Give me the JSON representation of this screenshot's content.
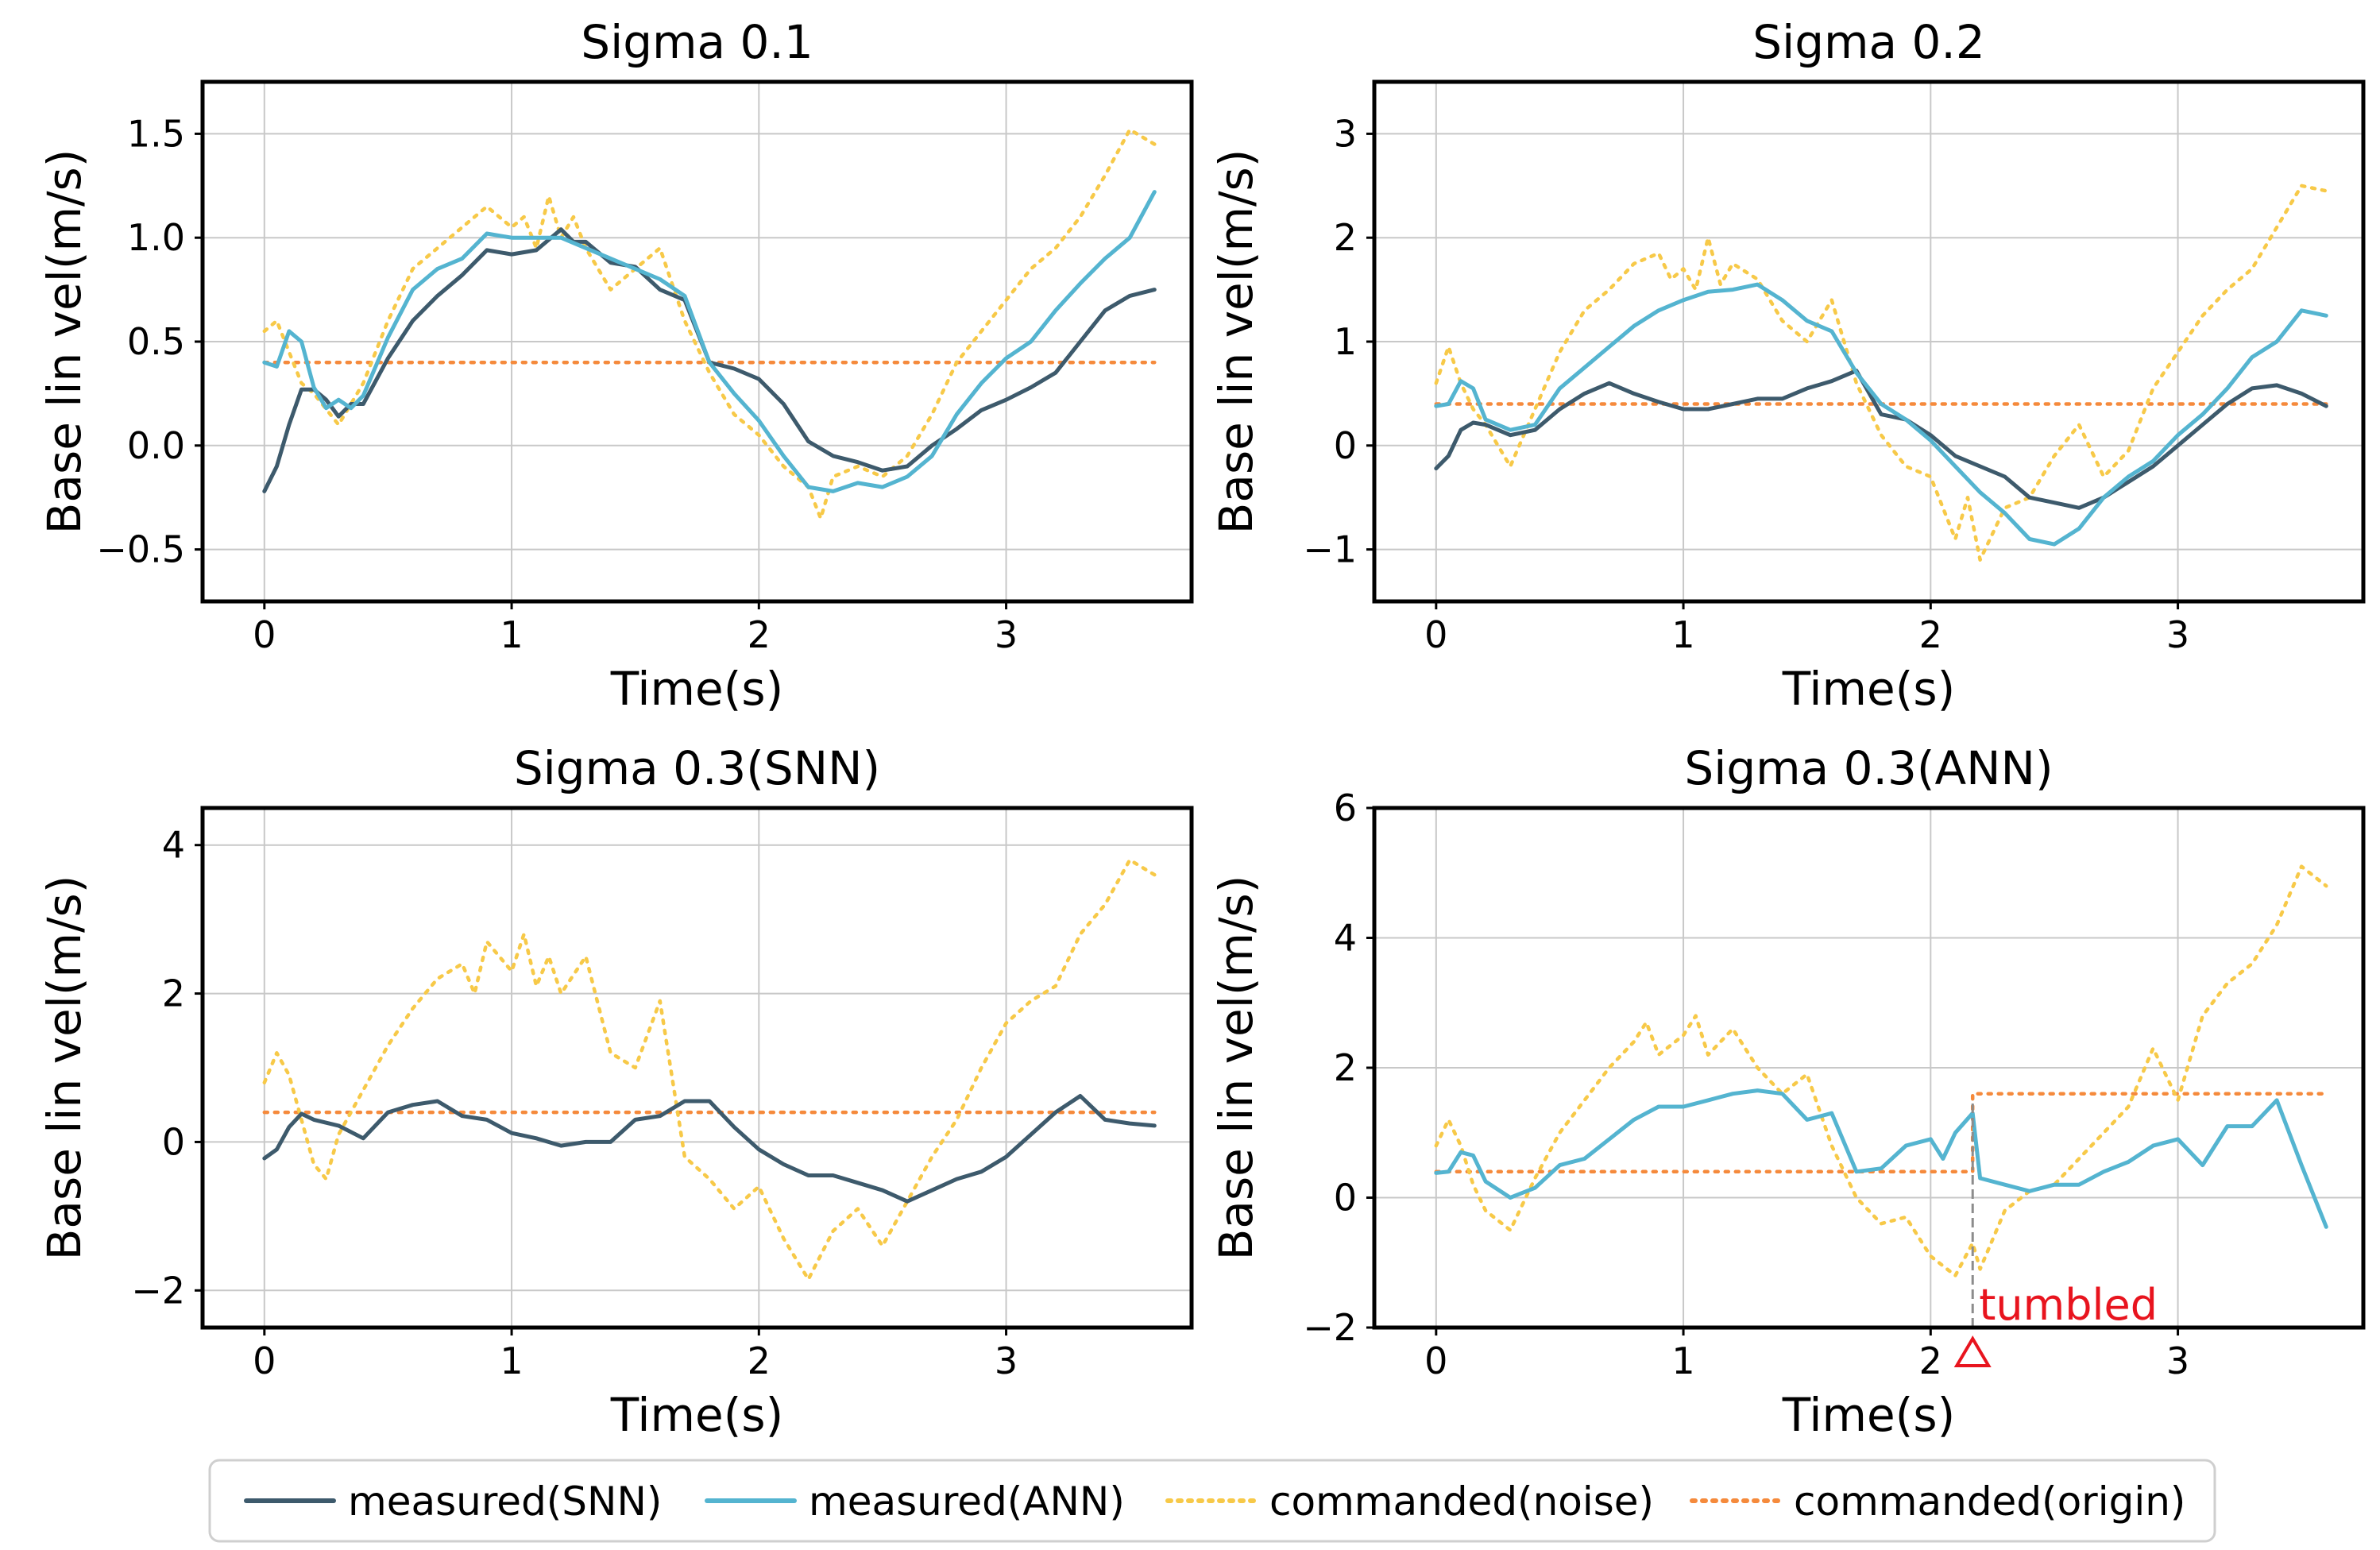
{
  "colors": {
    "measured_snn": "#3d5a6c",
    "measured_ann": "#54b4d0",
    "commanded_noise": "#f7c948",
    "commanded_origin": "#f58a3c",
    "tumbled": "#e8141e",
    "grid": "#c8c8c8"
  },
  "legend": {
    "placement": "bottom-center",
    "items": [
      {
        "key": "measured_snn",
        "label": "measured(SNN)",
        "style": "solid"
      },
      {
        "key": "measured_ann",
        "label": "measured(ANN)",
        "style": "solid"
      },
      {
        "key": "commanded_noise",
        "label": "commanded(noise)",
        "style": "dotted"
      },
      {
        "key": "commanded_origin",
        "label": "commanded(origin)",
        "style": "dotted"
      }
    ]
  },
  "chart_data": [
    {
      "type": "line",
      "title": "Sigma 0.1",
      "xlabel": "Time(s)",
      "ylabel": "Base lin vel(m/s)",
      "xlim": [
        -0.25,
        3.75
      ],
      "ylim": [
        -0.75,
        1.75
      ],
      "xticks": [
        0,
        1,
        2,
        3
      ],
      "yticks": [
        -0.5,
        0.0,
        0.5,
        1.0,
        1.5
      ],
      "ytick_labels": [
        "−0.5",
        "0.0",
        "0.5",
        "1.0",
        "1.5"
      ],
      "grid": true,
      "series": [
        {
          "key": "measured_snn",
          "x": [
            0,
            0.05,
            0.1,
            0.15,
            0.2,
            0.25,
            0.3,
            0.35,
            0.4,
            0.5,
            0.6,
            0.7,
            0.8,
            0.9,
            1.0,
            1.1,
            1.2,
            1.25,
            1.3,
            1.4,
            1.5,
            1.6,
            1.7,
            1.8,
            1.9,
            2.0,
            2.1,
            2.2,
            2.3,
            2.4,
            2.5,
            2.6,
            2.7,
            2.8,
            2.9,
            3.0,
            3.1,
            3.2,
            3.3,
            3.4,
            3.5,
            3.6
          ],
          "y": [
            -0.22,
            -0.1,
            0.1,
            0.27,
            0.27,
            0.22,
            0.14,
            0.2,
            0.2,
            0.42,
            0.6,
            0.72,
            0.82,
            0.94,
            0.92,
            0.94,
            1.04,
            0.98,
            0.98,
            0.88,
            0.86,
            0.75,
            0.7,
            0.4,
            0.37,
            0.32,
            0.2,
            0.02,
            -0.05,
            -0.08,
            -0.12,
            -0.1,
            0.0,
            0.08,
            0.17,
            0.22,
            0.28,
            0.35,
            0.5,
            0.65,
            0.72,
            0.75
          ]
        },
        {
          "key": "measured_ann",
          "x": [
            0,
            0.05,
            0.1,
            0.15,
            0.2,
            0.25,
            0.3,
            0.35,
            0.4,
            0.5,
            0.6,
            0.7,
            0.8,
            0.9,
            1.0,
            1.1,
            1.2,
            1.3,
            1.4,
            1.5,
            1.6,
            1.7,
            1.8,
            1.9,
            2.0,
            2.1,
            2.2,
            2.3,
            2.4,
            2.5,
            2.6,
            2.7,
            2.8,
            2.9,
            3.0,
            3.1,
            3.2,
            3.3,
            3.4,
            3.5,
            3.6
          ],
          "y": [
            0.4,
            0.38,
            0.55,
            0.5,
            0.28,
            0.18,
            0.22,
            0.18,
            0.24,
            0.52,
            0.75,
            0.85,
            0.9,
            1.02,
            1.0,
            1.0,
            1.0,
            0.95,
            0.9,
            0.85,
            0.8,
            0.72,
            0.4,
            0.25,
            0.12,
            -0.05,
            -0.2,
            -0.22,
            -0.18,
            -0.2,
            -0.15,
            -0.05,
            0.15,
            0.3,
            0.42,
            0.5,
            0.65,
            0.78,
            0.9,
            1.0,
            1.22
          ]
        },
        {
          "key": "commanded_noise",
          "x": [
            0,
            0.05,
            0.1,
            0.15,
            0.2,
            0.3,
            0.4,
            0.5,
            0.6,
            0.7,
            0.8,
            0.9,
            1.0,
            1.05,
            1.1,
            1.15,
            1.2,
            1.25,
            1.3,
            1.4,
            1.5,
            1.6,
            1.7,
            1.8,
            1.9,
            2.0,
            2.1,
            2.2,
            2.25,
            2.3,
            2.4,
            2.5,
            2.6,
            2.7,
            2.8,
            2.9,
            3.0,
            3.1,
            3.2,
            3.3,
            3.4,
            3.5,
            3.6
          ],
          "y": [
            0.55,
            0.6,
            0.45,
            0.3,
            0.25,
            0.1,
            0.3,
            0.6,
            0.85,
            0.95,
            1.05,
            1.15,
            1.05,
            1.1,
            0.95,
            1.2,
            1.0,
            1.1,
            0.95,
            0.75,
            0.85,
            0.95,
            0.6,
            0.35,
            0.15,
            0.05,
            -0.1,
            -0.2,
            -0.35,
            -0.15,
            -0.1,
            -0.15,
            -0.05,
            0.15,
            0.4,
            0.55,
            0.7,
            0.85,
            0.95,
            1.1,
            1.3,
            1.52,
            1.45
          ]
        },
        {
          "key": "commanded_origin",
          "x": [
            0,
            3.6
          ],
          "y": [
            0.4,
            0.4
          ]
        }
      ]
    },
    {
      "type": "line",
      "title": "Sigma 0.2",
      "xlabel": "Time(s)",
      "ylabel": "Base lin vel(m/s)",
      "xlim": [
        -0.25,
        3.75
      ],
      "ylim": [
        -1.5,
        3.5
      ],
      "xticks": [
        0,
        1,
        2,
        3
      ],
      "yticks": [
        -1,
        0,
        1,
        2,
        3
      ],
      "ytick_labels": [
        "−1",
        "0",
        "1",
        "2",
        "3"
      ],
      "grid": true,
      "series": [
        {
          "key": "measured_snn",
          "x": [
            0,
            0.05,
            0.1,
            0.15,
            0.2,
            0.3,
            0.4,
            0.5,
            0.6,
            0.7,
            0.8,
            0.9,
            1.0,
            1.1,
            1.2,
            1.3,
            1.4,
            1.5,
            1.6,
            1.7,
            1.8,
            1.9,
            2.0,
            2.1,
            2.2,
            2.3,
            2.4,
            2.5,
            2.6,
            2.7,
            2.8,
            2.9,
            3.0,
            3.1,
            3.2,
            3.3,
            3.4,
            3.5,
            3.6
          ],
          "y": [
            -0.22,
            -0.1,
            0.15,
            0.22,
            0.2,
            0.1,
            0.15,
            0.35,
            0.5,
            0.6,
            0.5,
            0.42,
            0.35,
            0.35,
            0.4,
            0.45,
            0.45,
            0.55,
            0.62,
            0.72,
            0.3,
            0.25,
            0.1,
            -0.1,
            -0.2,
            -0.3,
            -0.5,
            -0.55,
            -0.6,
            -0.5,
            -0.35,
            -0.2,
            0.0,
            0.2,
            0.4,
            0.55,
            0.58,
            0.5,
            0.38
          ]
        },
        {
          "key": "measured_ann",
          "x": [
            0,
            0.05,
            0.1,
            0.15,
            0.2,
            0.3,
            0.4,
            0.5,
            0.6,
            0.7,
            0.8,
            0.9,
            1.0,
            1.1,
            1.2,
            1.3,
            1.4,
            1.5,
            1.6,
            1.7,
            1.8,
            1.9,
            2.0,
            2.1,
            2.2,
            2.3,
            2.4,
            2.5,
            2.6,
            2.7,
            2.8,
            2.9,
            3.0,
            3.1,
            3.2,
            3.3,
            3.4,
            3.5,
            3.6
          ],
          "y": [
            0.38,
            0.4,
            0.62,
            0.55,
            0.25,
            0.15,
            0.2,
            0.55,
            0.75,
            0.95,
            1.15,
            1.3,
            1.4,
            1.48,
            1.5,
            1.55,
            1.4,
            1.2,
            1.1,
            0.7,
            0.4,
            0.25,
            0.05,
            -0.2,
            -0.45,
            -0.65,
            -0.9,
            -0.95,
            -0.8,
            -0.5,
            -0.3,
            -0.15,
            0.1,
            0.3,
            0.55,
            0.85,
            1.0,
            1.3,
            1.25
          ]
        },
        {
          "key": "commanded_noise",
          "x": [
            0,
            0.05,
            0.1,
            0.15,
            0.2,
            0.3,
            0.4,
            0.5,
            0.6,
            0.7,
            0.8,
            0.9,
            0.95,
            1.0,
            1.05,
            1.1,
            1.15,
            1.2,
            1.3,
            1.4,
            1.5,
            1.6,
            1.7,
            1.8,
            1.9,
            2.0,
            2.1,
            2.15,
            2.2,
            2.3,
            2.4,
            2.5,
            2.6,
            2.7,
            2.8,
            2.9,
            3.0,
            3.1,
            3.2,
            3.3,
            3.4,
            3.5,
            3.6
          ],
          "y": [
            0.6,
            0.95,
            0.6,
            0.35,
            0.2,
            -0.2,
            0.35,
            0.9,
            1.3,
            1.5,
            1.75,
            1.85,
            1.6,
            1.7,
            1.5,
            2.0,
            1.55,
            1.75,
            1.6,
            1.2,
            1.0,
            1.4,
            0.6,
            0.1,
            -0.2,
            -0.3,
            -0.9,
            -0.5,
            -1.1,
            -0.6,
            -0.5,
            -0.1,
            0.2,
            -0.3,
            -0.05,
            0.55,
            0.9,
            1.25,
            1.5,
            1.7,
            2.1,
            2.5,
            2.45
          ]
        },
        {
          "key": "commanded_origin",
          "x": [
            0,
            3.6
          ],
          "y": [
            0.4,
            0.4
          ]
        }
      ]
    },
    {
      "type": "line",
      "title": "Sigma 0.3(SNN)",
      "xlabel": "Time(s)",
      "ylabel": "Base lin vel(m/s)",
      "xlim": [
        -0.25,
        3.75
      ],
      "ylim": [
        -2.5,
        4.5
      ],
      "xticks": [
        0,
        1,
        2,
        3
      ],
      "yticks": [
        -2,
        0,
        2,
        4
      ],
      "ytick_labels": [
        "−2",
        "0",
        "2",
        "4"
      ],
      "grid": true,
      "series": [
        {
          "key": "measured_snn",
          "x": [
            0,
            0.05,
            0.1,
            0.15,
            0.2,
            0.3,
            0.4,
            0.5,
            0.6,
            0.7,
            0.8,
            0.9,
            1.0,
            1.1,
            1.2,
            1.3,
            1.4,
            1.5,
            1.6,
            1.7,
            1.8,
            1.9,
            2.0,
            2.1,
            2.2,
            2.3,
            2.4,
            2.5,
            2.6,
            2.7,
            2.8,
            2.9,
            3.0,
            3.1,
            3.2,
            3.3,
            3.4,
            3.5,
            3.6
          ],
          "y": [
            -0.22,
            -0.1,
            0.2,
            0.38,
            0.3,
            0.22,
            0.05,
            0.4,
            0.5,
            0.55,
            0.35,
            0.3,
            0.12,
            0.05,
            -0.05,
            0.0,
            0.0,
            0.3,
            0.35,
            0.55,
            0.55,
            0.2,
            -0.1,
            -0.3,
            -0.45,
            -0.45,
            -0.55,
            -0.65,
            -0.8,
            -0.65,
            -0.5,
            -0.4,
            -0.2,
            0.1,
            0.4,
            0.62,
            0.3,
            0.25,
            0.22
          ]
        },
        {
          "key": "commanded_noise",
          "x": [
            0,
            0.05,
            0.1,
            0.15,
            0.2,
            0.25,
            0.3,
            0.4,
            0.5,
            0.6,
            0.7,
            0.8,
            0.85,
            0.9,
            1.0,
            1.05,
            1.1,
            1.15,
            1.2,
            1.3,
            1.4,
            1.5,
            1.6,
            1.7,
            1.8,
            1.9,
            2.0,
            2.1,
            2.2,
            2.3,
            2.4,
            2.5,
            2.6,
            2.7,
            2.8,
            2.9,
            3.0,
            3.1,
            3.2,
            3.3,
            3.4,
            3.5,
            3.6
          ],
          "y": [
            0.8,
            1.2,
            0.9,
            0.3,
            -0.3,
            -0.5,
            0.1,
            0.7,
            1.3,
            1.8,
            2.2,
            2.4,
            2.0,
            2.7,
            2.3,
            2.8,
            2.1,
            2.5,
            2.0,
            2.5,
            1.2,
            1.0,
            1.9,
            -0.2,
            -0.5,
            -0.9,
            -0.6,
            -1.3,
            -1.85,
            -1.2,
            -0.9,
            -1.4,
            -0.8,
            -0.2,
            0.3,
            1.0,
            1.6,
            1.9,
            2.1,
            2.8,
            3.2,
            3.8,
            3.6
          ]
        },
        {
          "key": "commanded_origin",
          "x": [
            0,
            3.6
          ],
          "y": [
            0.4,
            0.4
          ]
        }
      ]
    },
    {
      "type": "line",
      "title": "Sigma 0.3(ANN)",
      "xlabel": "Time(s)",
      "ylabel": "Base lin vel(m/s)",
      "xlim": [
        -0.25,
        3.75
      ],
      "ylim": [
        -2.0,
        6.0
      ],
      "xticks": [
        0,
        1,
        2,
        3
      ],
      "yticks": [
        -2,
        0,
        2,
        4,
        6
      ],
      "ytick_labels": [
        "−2",
        "0",
        "2",
        "4",
        "6"
      ],
      "grid": true,
      "annotations": [
        {
          "text": "tumbled",
          "x": 2.17,
          "y": -2.0
        }
      ],
      "series": [
        {
          "key": "measured_ann",
          "x": [
            0,
            0.05,
            0.1,
            0.15,
            0.2,
            0.3,
            0.4,
            0.5,
            0.6,
            0.7,
            0.8,
            0.9,
            1.0,
            1.1,
            1.2,
            1.3,
            1.4,
            1.5,
            1.6,
            1.7,
            1.8,
            1.9,
            2.0,
            2.05,
            2.1,
            2.17,
            2.2,
            2.3,
            2.4,
            2.5,
            2.6,
            2.7,
            2.8,
            2.9,
            3.0,
            3.1,
            3.2,
            3.3,
            3.4,
            3.5,
            3.6
          ],
          "y": [
            0.38,
            0.4,
            0.7,
            0.65,
            0.25,
            0.0,
            0.15,
            0.5,
            0.6,
            0.9,
            1.2,
            1.4,
            1.4,
            1.5,
            1.6,
            1.65,
            1.6,
            1.2,
            1.3,
            0.4,
            0.45,
            0.8,
            0.9,
            0.6,
            1.0,
            1.3,
            0.3,
            0.2,
            0.1,
            0.2,
            0.2,
            0.4,
            0.55,
            0.8,
            0.9,
            0.5,
            1.1,
            1.1,
            1.5,
            0.5,
            -0.45
          ]
        },
        {
          "key": "commanded_noise",
          "x": [
            0,
            0.05,
            0.1,
            0.15,
            0.2,
            0.3,
            0.4,
            0.5,
            0.6,
            0.7,
            0.8,
            0.85,
            0.9,
            1.0,
            1.05,
            1.1,
            1.2,
            1.3,
            1.4,
            1.5,
            1.6,
            1.7,
            1.8,
            1.9,
            2.0,
            2.1,
            2.17,
            2.2,
            2.3,
            2.4,
            2.5,
            2.6,
            2.7,
            2.8,
            2.9,
            3.0,
            3.1,
            3.2,
            3.3,
            3.4,
            3.5,
            3.6
          ],
          "y": [
            0.8,
            1.2,
            0.8,
            0.2,
            -0.2,
            -0.5,
            0.3,
            1.0,
            1.5,
            2.0,
            2.4,
            2.7,
            2.2,
            2.5,
            2.8,
            2.2,
            2.6,
            2.0,
            1.6,
            1.9,
            0.8,
            0.0,
            -0.4,
            -0.3,
            -0.9,
            -1.2,
            -0.7,
            -1.1,
            -0.2,
            0.1,
            0.2,
            0.6,
            1.0,
            1.4,
            2.3,
            1.5,
            2.8,
            3.3,
            3.6,
            4.2,
            5.1,
            4.8
          ]
        },
        {
          "key": "commanded_origin",
          "x": [
            0,
            2.17,
            2.17,
            3.6
          ],
          "y": [
            0.4,
            0.4,
            1.6,
            1.6
          ]
        }
      ]
    }
  ]
}
